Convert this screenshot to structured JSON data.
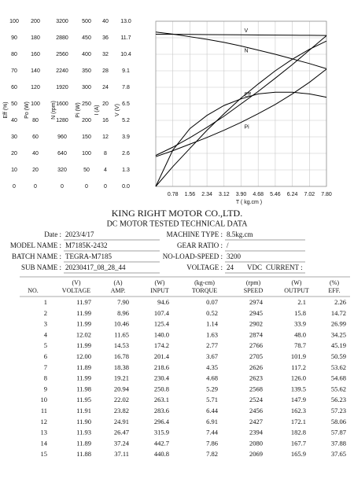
{
  "chart_data": {
    "type": "line",
    "x_label": "T ( kg.cm )",
    "x": [
      0,
      0.78,
      1.56,
      2.34,
      3.12,
      3.9,
      4.68,
      5.46,
      6.24,
      7.02,
      7.8
    ],
    "xlim": [
      0,
      7.8
    ],
    "xticks": [
      0.78,
      1.56,
      2.34,
      3.12,
      {
        "value": 3.9,
        "label": "3.90"
      },
      4.68,
      5.46,
      6.24,
      7.02,
      {
        "value": 7.8,
        "label": "7.80"
      }
    ],
    "grid": true,
    "axes": [
      {
        "label": "Eff (%)",
        "ylim": [
          0,
          100
        ],
        "yticks": [
          0,
          10,
          20,
          30,
          40,
          50,
          60,
          70,
          80,
          90,
          100
        ]
      },
      {
        "label": "Po (W)",
        "ylim": [
          0,
          200
        ],
        "yticks": [
          0,
          20,
          40,
          60,
          80,
          100,
          120,
          140,
          160,
          180,
          200
        ]
      },
      {
        "label": "N (rpm)",
        "ylim": [
          0,
          3200
        ],
        "yticks": [
          0,
          320,
          640,
          960,
          1280,
          1600,
          1920,
          2240,
          2560,
          2880,
          3200
        ]
      },
      {
        "label": "Pi (W)",
        "ylim": [
          0,
          500
        ],
        "yticks": [
          0,
          50,
          100,
          150,
          200,
          250,
          300,
          350,
          400,
          450,
          500
        ]
      },
      {
        "label": "I (A)",
        "ylim": [
          0,
          40
        ],
        "yticks": [
          0,
          4,
          8,
          12,
          16,
          20,
          24,
          28,
          32,
          36,
          40
        ]
      },
      {
        "label": "V (V)",
        "ylim": [
          0,
          13
        ],
        "yticks": [
          {
            "value": 0,
            "label": "0.0"
          },
          1.3,
          2.6,
          3.9,
          5.2,
          6.5,
          7.8,
          9.1,
          10.4,
          11.7,
          {
            "value": 13,
            "label": "13.0"
          }
        ]
      }
    ],
    "series": [
      {
        "name": "V",
        "axis": 5,
        "color": "#000000",
        "values": [
          11.98,
          11.97,
          11.96,
          11.95,
          11.94,
          11.93,
          11.92,
          11.91,
          11.9,
          11.89,
          11.88
        ]
      },
      {
        "name": "N",
        "axis": 2,
        "color": "#000000",
        "values": [
          2990,
          2950,
          2900,
          2850,
          2790,
          2720,
          2640,
          2560,
          2470,
          2380,
          2280
        ]
      },
      {
        "name": "Eff",
        "axis": 0,
        "color": "#000000",
        "values": [
          0,
          22,
          35,
          43,
          49,
          53,
          56,
          57,
          57,
          56,
          54
        ]
      },
      {
        "name": "Pi",
        "axis": 3,
        "color": "#000000",
        "values": [
          90,
          108,
          128,
          148,
          170,
          194,
          220,
          248,
          280,
          315,
          355
        ]
      },
      {
        "axis": 4,
        "color": "#000000",
        "values": [
          7.5,
          9.5,
          11.8,
          14.3,
          17,
          20,
          23,
          26.2,
          29.5,
          33,
          36.5
        ]
      },
      {
        "axis": 1,
        "color": "#000000",
        "values": [
          0,
          24,
          46,
          68,
          88,
          107,
          124,
          140,
          154,
          166,
          176
        ]
      }
    ]
  },
  "header": {
    "company": "KING RIGHT MOTOR CO.,LTD.",
    "subtitle": "DC MOTOR TESTED TECHNICAL DATA"
  },
  "info": {
    "left": [
      {
        "label": "Date :",
        "value": "2023/4/17"
      },
      {
        "label": "MODEL NAME :",
        "value": "M7185K-2432"
      },
      {
        "label": "BATCH NAME :",
        "value": "TEGRA-M7185"
      },
      {
        "label": "SUB NAME :",
        "value": "20230417_08_28_44"
      }
    ],
    "right": [
      {
        "label": "MACHINE TYPE :",
        "value": "8.5kg.cm"
      },
      {
        "label": "GEAR RATIO :",
        "value": "/"
      },
      {
        "label": "NO-LOAD-SPEED :",
        "value": "3200"
      },
      {
        "label": "VOLTAGE :",
        "value": "24",
        "unit": "VDC",
        "extra": "CURRENT :"
      }
    ]
  },
  "table": {
    "units": [
      "",
      "(V)",
      "(A)",
      "(W)",
      "(kg-cm)",
      "(rpm)",
      "(W)",
      "(%)"
    ],
    "columns": [
      "NO.",
      "VOLTAGE",
      "AMP.",
      "INPUT",
      "TORQUE",
      "SPEED",
      "OUTPUT",
      "EFF."
    ],
    "rows": [
      [
        "1",
        "11.97",
        "7.90",
        "94.6",
        "0.07",
        "2974",
        "2.1",
        "2.26"
      ],
      [
        "2",
        "11.99",
        "8.96",
        "107.4",
        "0.52",
        "2945",
        "15.8",
        "14.72"
      ],
      [
        "3",
        "11.99",
        "10.46",
        "125.4",
        "1.14",
        "2902",
        "33.9",
        "26.99"
      ],
      [
        "4",
        "12.02",
        "11.65",
        "140.0",
        "1.63",
        "2874",
        "48.0",
        "34.25"
      ],
      [
        "5",
        "11.99",
        "14.53",
        "174.2",
        "2.77",
        "2766",
        "78.7",
        "45.19"
      ],
      [
        "6",
        "12.00",
        "16.78",
        "201.4",
        "3.67",
        "2705",
        "101.9",
        "50.59"
      ],
      [
        "7",
        "11.89",
        "18.38",
        "218.6",
        "4.35",
        "2626",
        "117.2",
        "53.62"
      ],
      [
        "8",
        "11.99",
        "19.21",
        "230.4",
        "4.68",
        "2623",
        "126.0",
        "54.68"
      ],
      [
        "9",
        "11.98",
        "20.94",
        "250.8",
        "5.29",
        "2568",
        "139.5",
        "55.62"
      ],
      [
        "10",
        "11.95",
        "22.02",
        "263.1",
        "5.71",
        "2524",
        "147.9",
        "56.23"
      ],
      [
        "11",
        "11.91",
        "23.82",
        "283.6",
        "6.44",
        "2456",
        "162.3",
        "57.23"
      ],
      [
        "12",
        "11.90",
        "24.91",
        "296.4",
        "6.91",
        "2427",
        "172.1",
        "58.06"
      ],
      [
        "13",
        "11.93",
        "26.47",
        "315.9",
        "7.44",
        "2394",
        "182.8",
        "57.87"
      ],
      [
        "14",
        "11.89",
        "37.24",
        "442.7",
        "7.86",
        "2080",
        "167.7",
        "37.88"
      ],
      [
        "15",
        "11.88",
        "37.11",
        "440.8",
        "7.82",
        "2069",
        "165.9",
        "37.65"
      ]
    ]
  }
}
